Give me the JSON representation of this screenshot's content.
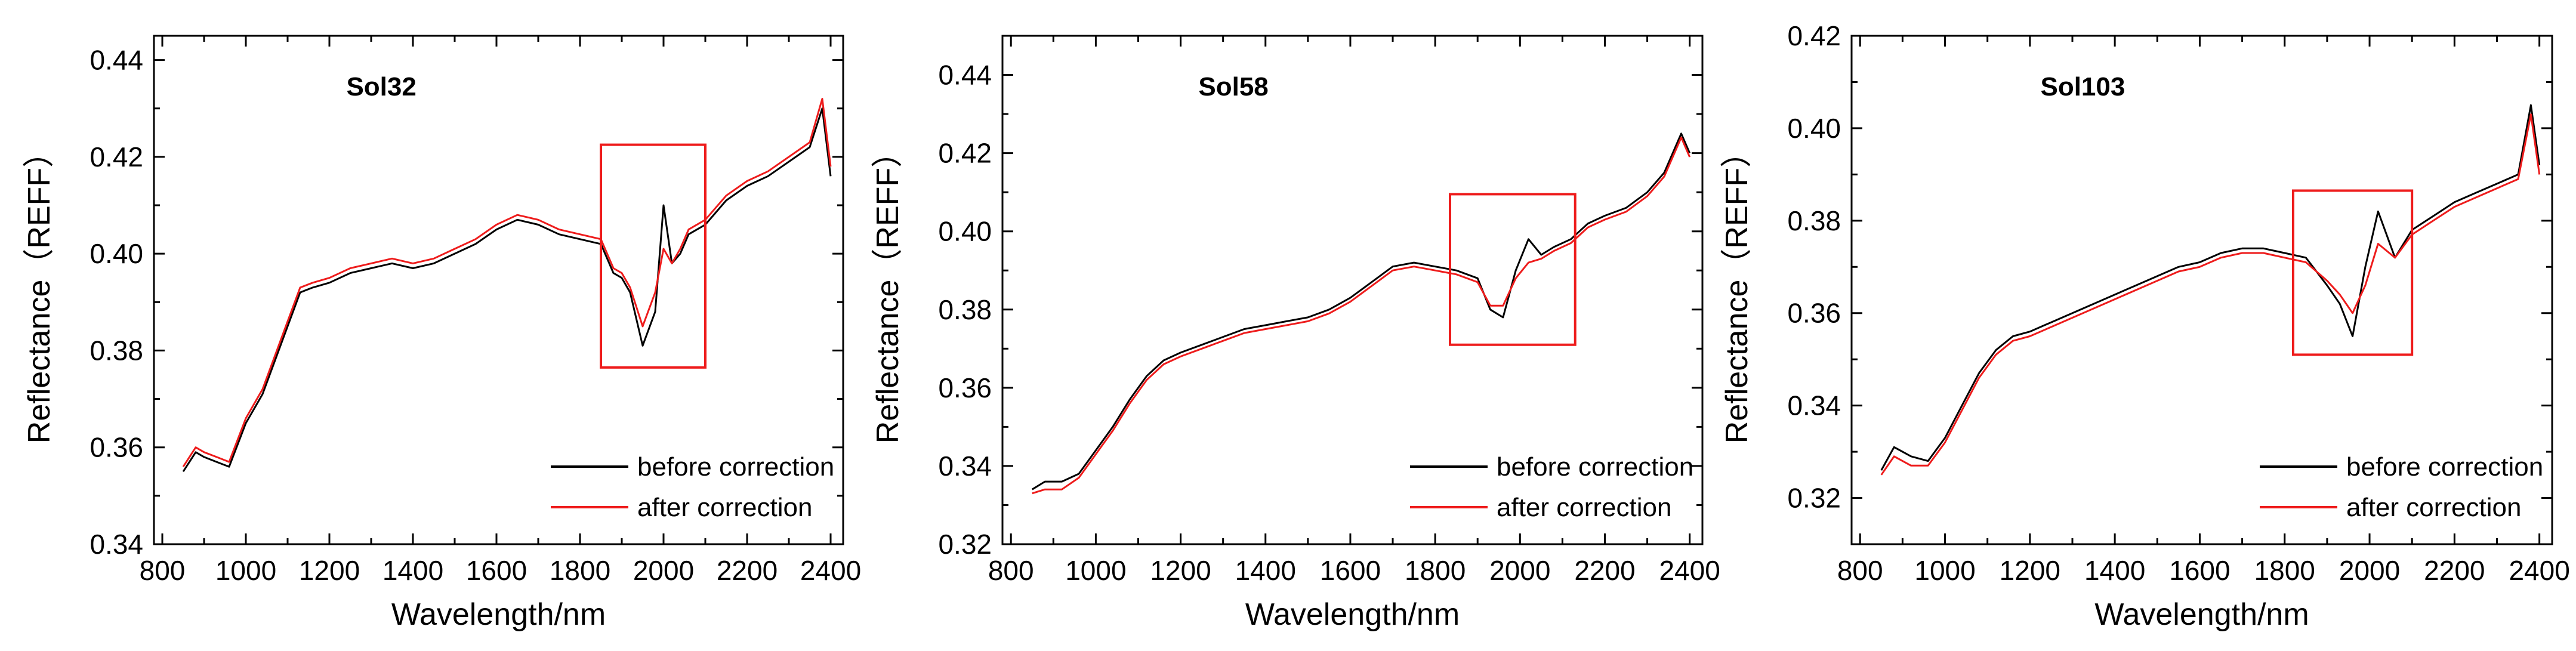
{
  "chart_data": [
    {
      "type": "line",
      "title": "Sol32",
      "xlabel": "Wavelength/nm",
      "ylabel": "Reflectance（REFF）",
      "xlim": [
        780,
        2430
      ],
      "ylim": [
        0.34,
        0.445
      ],
      "xticks": [
        800,
        1000,
        1200,
        1400,
        1600,
        1800,
        2000,
        2200,
        2400
      ],
      "yticks": [
        0.34,
        0.36,
        0.38,
        0.4,
        0.42,
        0.44
      ],
      "ytick_labels": [
        "0.34",
        "0.36",
        "0.38",
        "0.40",
        "0.42",
        "0.44"
      ],
      "highlight": {
        "x": [
          1850,
          2100
        ],
        "y": [
          0.3765,
          0.4225
        ]
      },
      "legend": {
        "position": "bottom-right",
        "entries": [
          "before correction",
          "after correction"
        ]
      },
      "series": [
        {
          "name": "before correction",
          "color": "#000000",
          "x": [
            850,
            880,
            900,
            930,
            960,
            1000,
            1040,
            1070,
            1100,
            1130,
            1160,
            1200,
            1250,
            1300,
            1350,
            1400,
            1450,
            1500,
            1550,
            1600,
            1650,
            1700,
            1750,
            1800,
            1850,
            1880,
            1900,
            1920,
            1950,
            1980,
            2000,
            2020,
            2040,
            2060,
            2100,
            2150,
            2200,
            2250,
            2300,
            2350,
            2380,
            2400
          ],
          "y": [
            0.355,
            0.359,
            0.358,
            0.357,
            0.356,
            0.365,
            0.371,
            0.378,
            0.385,
            0.392,
            0.393,
            0.394,
            0.396,
            0.397,
            0.398,
            0.397,
            0.398,
            0.4,
            0.402,
            0.405,
            0.407,
            0.406,
            0.404,
            0.403,
            0.402,
            0.396,
            0.395,
            0.392,
            0.381,
            0.388,
            0.41,
            0.398,
            0.4,
            0.404,
            0.406,
            0.411,
            0.414,
            0.416,
            0.419,
            0.422,
            0.43,
            0.416
          ]
        },
        {
          "name": "after correction",
          "color": "#ee1c1c",
          "x": [
            850,
            880,
            900,
            930,
            960,
            1000,
            1040,
            1070,
            1100,
            1130,
            1160,
            1200,
            1250,
            1300,
            1350,
            1400,
            1450,
            1500,
            1550,
            1600,
            1650,
            1700,
            1750,
            1800,
            1850,
            1880,
            1900,
            1920,
            1950,
            1980,
            2000,
            2020,
            2040,
            2060,
            2100,
            2150,
            2200,
            2250,
            2300,
            2350,
            2380,
            2400
          ],
          "y": [
            0.356,
            0.36,
            0.359,
            0.358,
            0.357,
            0.366,
            0.372,
            0.379,
            0.386,
            0.393,
            0.394,
            0.395,
            0.397,
            0.398,
            0.399,
            0.398,
            0.399,
            0.401,
            0.403,
            0.406,
            0.408,
            0.407,
            0.405,
            0.404,
            0.403,
            0.397,
            0.396,
            0.393,
            0.385,
            0.392,
            0.401,
            0.398,
            0.401,
            0.405,
            0.407,
            0.412,
            0.415,
            0.417,
            0.42,
            0.423,
            0.432,
            0.418
          ]
        }
      ]
    },
    {
      "type": "line",
      "title": "Sol58",
      "xlabel": "Wavelength/nm",
      "ylabel": "Reflectance（REFF）",
      "xlim": [
        780,
        2430
      ],
      "ylim": [
        0.32,
        0.45
      ],
      "xticks": [
        800,
        1000,
        1200,
        1400,
        1600,
        1800,
        2000,
        2200,
        2400
      ],
      "yticks": [
        0.32,
        0.34,
        0.36,
        0.38,
        0.4,
        0.42,
        0.44
      ],
      "ytick_labels": [
        "0.32",
        "0.34",
        "0.36",
        "0.38",
        "0.40",
        "0.42",
        "0.44"
      ],
      "highlight": {
        "x": [
          1835,
          2130
        ],
        "y": [
          0.371,
          0.4095
        ]
      },
      "legend": {
        "position": "bottom-right",
        "entries": [
          "before correction",
          "after correction"
        ]
      },
      "series": [
        {
          "name": "before correction",
          "color": "#000000",
          "x": [
            850,
            880,
            920,
            960,
            1000,
            1040,
            1080,
            1120,
            1160,
            1200,
            1250,
            1300,
            1350,
            1400,
            1450,
            1500,
            1550,
            1600,
            1650,
            1700,
            1750,
            1800,
            1850,
            1900,
            1930,
            1960,
            1990,
            2020,
            2050,
            2080,
            2120,
            2160,
            2200,
            2250,
            2300,
            2340,
            2380,
            2400
          ],
          "y": [
            0.334,
            0.336,
            0.336,
            0.338,
            0.344,
            0.35,
            0.357,
            0.363,
            0.367,
            0.369,
            0.371,
            0.373,
            0.375,
            0.376,
            0.377,
            0.378,
            0.38,
            0.383,
            0.387,
            0.391,
            0.392,
            0.391,
            0.39,
            0.388,
            0.38,
            0.378,
            0.39,
            0.398,
            0.394,
            0.396,
            0.398,
            0.402,
            0.404,
            0.406,
            0.41,
            0.415,
            0.425,
            0.42
          ]
        },
        {
          "name": "after correction",
          "color": "#ee1c1c",
          "x": [
            850,
            880,
            920,
            960,
            1000,
            1040,
            1080,
            1120,
            1160,
            1200,
            1250,
            1300,
            1350,
            1400,
            1450,
            1500,
            1550,
            1600,
            1650,
            1700,
            1750,
            1800,
            1850,
            1900,
            1930,
            1960,
            1990,
            2020,
            2050,
            2080,
            2120,
            2160,
            2200,
            2250,
            2300,
            2340,
            2380,
            2400
          ],
          "y": [
            0.333,
            0.334,
            0.334,
            0.337,
            0.343,
            0.349,
            0.356,
            0.362,
            0.366,
            0.368,
            0.37,
            0.372,
            0.374,
            0.375,
            0.376,
            0.377,
            0.379,
            0.382,
            0.386,
            0.39,
            0.391,
            0.39,
            0.389,
            0.387,
            0.381,
            0.381,
            0.388,
            0.392,
            0.393,
            0.395,
            0.397,
            0.401,
            0.403,
            0.405,
            0.409,
            0.414,
            0.424,
            0.419
          ]
        }
      ]
    },
    {
      "type": "line",
      "title": "Sol103",
      "xlabel": "Wavelength/nm",
      "ylabel": "Reflectance（REFF）",
      "xlim": [
        780,
        2430
      ],
      "ylim": [
        0.31,
        0.42
      ],
      "xticks": [
        800,
        1000,
        1200,
        1400,
        1600,
        1800,
        2000,
        2200,
        2400
      ],
      "yticks": [
        0.32,
        0.34,
        0.36,
        0.38,
        0.4,
        0.42
      ],
      "ytick_labels": [
        "0.32",
        "0.34",
        "0.36",
        "0.38",
        "0.40",
        "0.42"
      ],
      "highlight": {
        "x": [
          1820,
          2100
        ],
        "y": [
          0.351,
          0.3865
        ]
      },
      "legend": {
        "position": "bottom-right",
        "entries": [
          "before correction",
          "after correction"
        ]
      },
      "series": [
        {
          "name": "before correction",
          "color": "#000000",
          "x": [
            850,
            880,
            920,
            960,
            1000,
            1040,
            1080,
            1120,
            1160,
            1200,
            1250,
            1300,
            1350,
            1400,
            1450,
            1500,
            1550,
            1600,
            1650,
            1700,
            1750,
            1800,
            1850,
            1900,
            1930,
            1960,
            1990,
            2020,
            2060,
            2100,
            2150,
            2200,
            2250,
            2300,
            2350,
            2380,
            2400
          ],
          "y": [
            0.326,
            0.331,
            0.329,
            0.328,
            0.333,
            0.34,
            0.347,
            0.352,
            0.355,
            0.356,
            0.358,
            0.36,
            0.362,
            0.364,
            0.366,
            0.368,
            0.37,
            0.371,
            0.373,
            0.374,
            0.374,
            0.373,
            0.372,
            0.366,
            0.362,
            0.355,
            0.37,
            0.382,
            0.372,
            0.378,
            0.381,
            0.384,
            0.386,
            0.388,
            0.39,
            0.405,
            0.392
          ]
        },
        {
          "name": "after correction",
          "color": "#ee1c1c",
          "x": [
            850,
            880,
            920,
            960,
            1000,
            1040,
            1080,
            1120,
            1160,
            1200,
            1250,
            1300,
            1350,
            1400,
            1450,
            1500,
            1550,
            1600,
            1650,
            1700,
            1750,
            1800,
            1850,
            1900,
            1930,
            1960,
            1990,
            2020,
            2060,
            2100,
            2150,
            2200,
            2250,
            2300,
            2350,
            2380,
            2400
          ],
          "y": [
            0.325,
            0.329,
            0.327,
            0.327,
            0.332,
            0.339,
            0.346,
            0.351,
            0.354,
            0.355,
            0.357,
            0.359,
            0.361,
            0.363,
            0.365,
            0.367,
            0.369,
            0.37,
            0.372,
            0.373,
            0.373,
            0.372,
            0.371,
            0.367,
            0.364,
            0.36,
            0.366,
            0.375,
            0.372,
            0.377,
            0.38,
            0.383,
            0.385,
            0.387,
            0.389,
            0.403,
            0.39
          ]
        }
      ]
    }
  ]
}
